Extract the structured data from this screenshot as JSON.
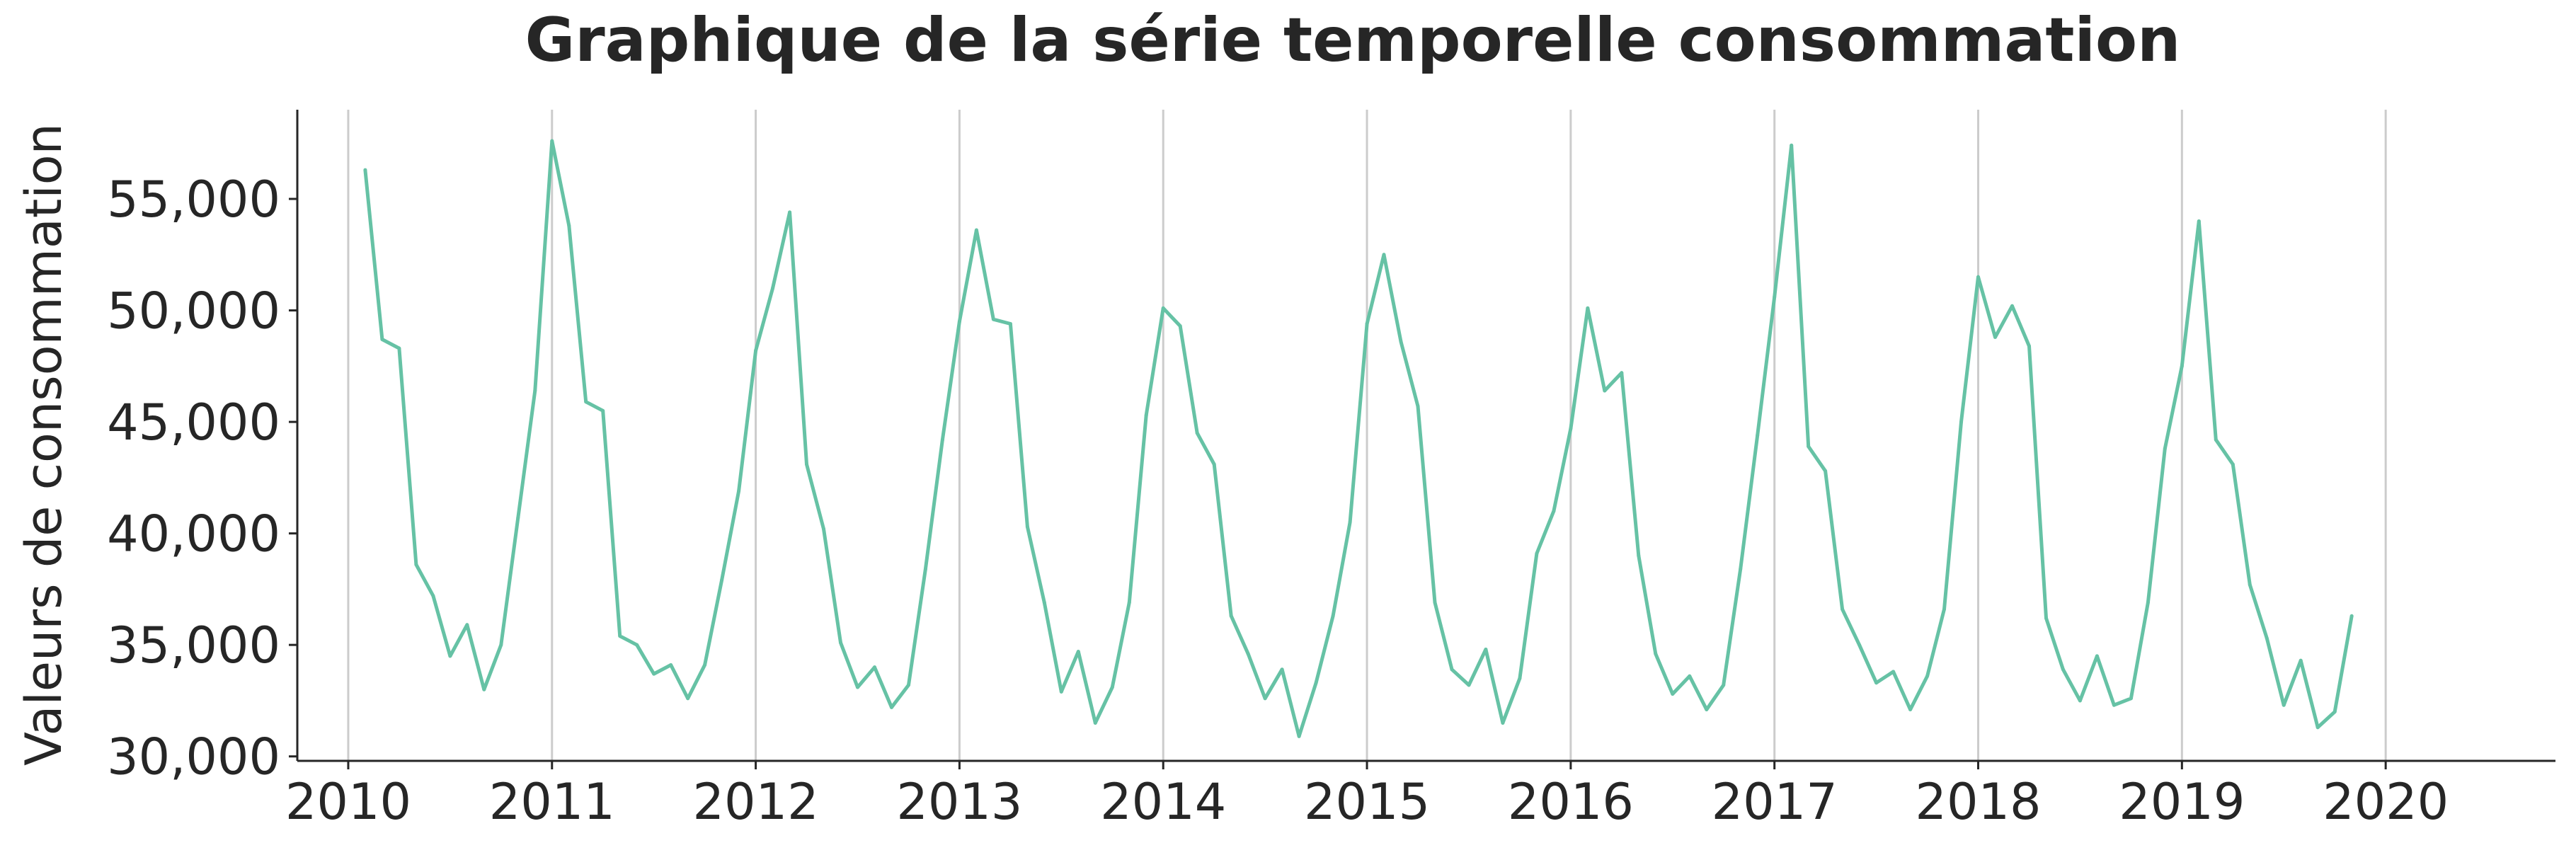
{
  "chart_data": {
    "type": "line",
    "title": "Graphique de la série temporelle consommation",
    "xlabel": "",
    "ylabel": "Valeurs de consommation",
    "x_ticks": [
      "2010",
      "2011",
      "2012",
      "2013",
      "2014",
      "2015",
      "2016",
      "2017",
      "2018",
      "2019",
      "2020"
    ],
    "y_ticks": [
      "30,000",
      "35,000",
      "40,000",
      "45,000",
      "50,000",
      "55,000"
    ],
    "y_tick_values": [
      30000,
      35000,
      40000,
      45000,
      50000,
      55000
    ],
    "xlim": [
      "2009-10",
      "2020-11"
    ],
    "ylim": [
      29800,
      59000
    ],
    "grid": "vertical lines at x ticks",
    "colors": {
      "line": "#66c2a5",
      "grid": "#cccccc",
      "axis": "#262626"
    },
    "series": [
      {
        "x": [
          "2010-02",
          "2010-03",
          "2010-04",
          "2010-05",
          "2010-06",
          "2010-07",
          "2010-08",
          "2010-09",
          "2010-10",
          "2010-11",
          "2010-12",
          "2011-01",
          "2011-02",
          "2011-03",
          "2011-04",
          "2011-05",
          "2011-06",
          "2011-07",
          "2011-08",
          "2011-09",
          "2011-10",
          "2011-11",
          "2011-12",
          "2012-01",
          "2012-02",
          "2012-03",
          "2012-04",
          "2012-05",
          "2012-06",
          "2012-07",
          "2012-08",
          "2012-09",
          "2012-10",
          "2012-11",
          "2012-12",
          "2013-01",
          "2013-02",
          "2013-03",
          "2013-04",
          "2013-05",
          "2013-06",
          "2013-07",
          "2013-08",
          "2013-09",
          "2013-10",
          "2013-11",
          "2013-12",
          "2014-01",
          "2014-02",
          "2014-03",
          "2014-04",
          "2014-05",
          "2014-06",
          "2014-07",
          "2014-08",
          "2014-09",
          "2014-10",
          "2014-11",
          "2014-12",
          "2015-01",
          "2015-02",
          "2015-03",
          "2015-04",
          "2015-05",
          "2015-06",
          "2015-07",
          "2015-08",
          "2015-09",
          "2015-10",
          "2015-11",
          "2015-12",
          "2016-01",
          "2016-02",
          "2016-03",
          "2016-04",
          "2016-05",
          "2016-06",
          "2016-07",
          "2016-08",
          "2016-09",
          "2016-10",
          "2016-11",
          "2016-12",
          "2017-01",
          "2017-02",
          "2017-03",
          "2017-04",
          "2017-05",
          "2017-06",
          "2017-07",
          "2017-08",
          "2017-09",
          "2017-10",
          "2017-11",
          "2017-12",
          "2018-01",
          "2018-02",
          "2018-03",
          "2018-04",
          "2018-05",
          "2018-06",
          "2018-07",
          "2018-08",
          "2018-09",
          "2018-10",
          "2018-11",
          "2018-12",
          "2019-01",
          "2019-02",
          "2019-03",
          "2019-04",
          "2019-05",
          "2019-06",
          "2019-07",
          "2019-08",
          "2019-09",
          "2019-10",
          "2019-11"
        ],
        "values": [
          56300,
          48700,
          48300,
          38600,
          37200,
          34500,
          35900,
          33000,
          35000,
          40700,
          46400,
          57600,
          53800,
          45900,
          45500,
          35400,
          35000,
          33700,
          34100,
          32600,
          34100,
          37900,
          41900,
          48200,
          51000,
          54400,
          43100,
          40200,
          35100,
          33100,
          34000,
          32200,
          33200,
          38400,
          44200,
          49500,
          53600,
          49600,
          49400,
          40300,
          36900,
          32900,
          34700,
          31500,
          33100,
          36900,
          45300,
          50100,
          49300,
          44500,
          43100,
          36300,
          34600,
          32600,
          33900,
          30900,
          33300,
          36300,
          40500,
          49400,
          52500,
          48600,
          45700,
          36900,
          33900,
          33200,
          34800,
          31500,
          33500,
          39100,
          41000,
          44700,
          50100,
          46400,
          47200,
          39000,
          34600,
          32800,
          33600,
          32100,
          33200,
          38400,
          44400,
          50600,
          57400,
          43900,
          42800,
          36600,
          35000,
          33300,
          33800,
          32100,
          33600,
          36600,
          45000,
          51500,
          48800,
          50200,
          48400,
          36200,
          33900,
          32500,
          34500,
          32300,
          32600,
          36900,
          43800,
          47500,
          54000,
          44200,
          43100,
          37700,
          35300,
          32300,
          34300,
          31300,
          32000,
          36300
        ]
      }
    ]
  }
}
